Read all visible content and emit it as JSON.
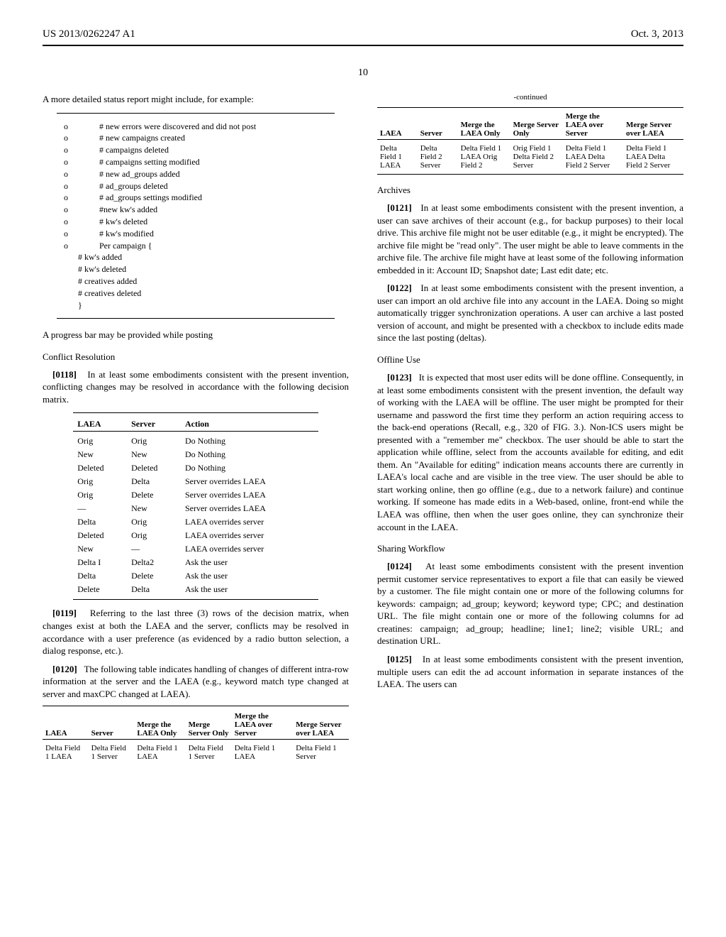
{
  "header": {
    "pub_number": "US 2013/0262247 A1",
    "pub_date": "Oct. 3, 2013",
    "page_number": "10"
  },
  "left_col": {
    "intro": "A more detailed status report might include, for example:",
    "status_items": [
      "# new errors were discovered and did not post",
      "# new campaigns created",
      "# campaigns deleted",
      "# campaigns setting modified",
      "# new ad_groups added",
      "# ad_groups deleted",
      "# ad_groups settings modified",
      "#new kw's added",
      "# kw's deleted",
      "# kw's modified",
      "Per campaign {"
    ],
    "status_sub": [
      "# kw's added",
      "# kw's deleted",
      "# creatives added",
      "# creatives deleted",
      "}"
    ],
    "progress_line": "A progress bar may be provided while posting",
    "conflict_title": "Conflict Resolution",
    "para_0118_num": "[0118]",
    "para_0118": "In at least some embodiments consistent with the present invention, conflicting changes may be resolved in accordance with the following decision matrix.",
    "decision_headers": [
      "LAEA",
      "Server",
      "Action"
    ],
    "decision_rows": [
      [
        "Orig",
        "Orig",
        "Do Nothing"
      ],
      [
        "New",
        "New",
        "Do Nothing"
      ],
      [
        "Deleted",
        "Deleted",
        "Do Nothing"
      ],
      [
        "Orig",
        "Delta",
        "Server overrides LAEA"
      ],
      [
        "Orig",
        "Delete",
        "Server overrides LAEA"
      ],
      [
        "—",
        "New",
        "Server overrides LAEA"
      ],
      [
        "Delta",
        "Orig",
        "LAEA overrides server"
      ],
      [
        "Deleted",
        "Orig",
        "LAEA overrides server"
      ],
      [
        "New",
        "—",
        "LAEA overrides server"
      ],
      [
        "Delta I",
        "Delta2",
        "Ask the user"
      ],
      [
        "Delta",
        "Delete",
        "Ask the user"
      ],
      [
        "Delete",
        "Delta",
        "Ask the user"
      ]
    ],
    "para_0119_num": "[0119]",
    "para_0119": "Referring to the last three (3) rows of the decision matrix, when changes exist at both the LAEA and the server, conflicts may be resolved in accordance with a user preference (as evidenced by a radio button selection, a dialog response, etc.).",
    "para_0120_num": "[0120]",
    "para_0120": "The following table indicates handling of changes of different intra-row information at the server and the LAEA (e.g., keyword match type changed at server and maxCPC changed at LAEA).",
    "merge_headers": [
      "LAEA",
      "Server",
      "Merge the LAEA Only",
      "Merge Server Only",
      "Merge the LAEA over Server",
      "Merge Server over LAEA"
    ],
    "merge_row1": [
      "Delta Field 1 LAEA",
      "Delta Field 1 Server",
      "Delta Field 1 LAEA",
      "Delta Field 1 Server",
      "Delta Field 1 LAEA",
      "Delta Field 1 Server"
    ]
  },
  "right_col": {
    "continued": "-continued",
    "merge_headers": [
      "LAEA",
      "Server",
      "Merge the LAEA Only",
      "Merge Server Only",
      "Merge the LAEA over Server",
      "Merge Server over LAEA"
    ],
    "merge_row2": [
      "Delta Field 1 LAEA",
      "Delta Field 2 Server",
      "Delta Field 1 LAEA Orig Field 2",
      "Orig Field 1 Delta Field 2 Server",
      "Delta Field 1 LAEA Delta Field 2 Server",
      "Delta Field 1 LAEA Delta Field 2 Server"
    ],
    "archives_title": "Archives",
    "para_0121_num": "[0121]",
    "para_0121": "In at least some embodiments consistent with the present invention, a user can save archives of their account (e.g., for backup purposes) to their local drive. This archive file might not be user editable (e.g., it might be encrypted). The archive file might be \"read only\". The user might be able to leave comments in the archive file. The archive file might have at least some of the following information embedded in it: Account ID; Snapshot date; Last edit date; etc.",
    "para_0122_num": "[0122]",
    "para_0122": "In at least some embodiments consistent with the present invention, a user can import an old archive file into any account in the LAEA. Doing so might automatically trigger synchronization operations. A user can archive a last posted version of account, and might be presented with a checkbox to include edits made since the last posting (deltas).",
    "offline_title": "Offline Use",
    "para_0123_num": "[0123]",
    "para_0123": "It is expected that most user edits will be done offline. Consequently, in at least some embodiments consistent with the present invention, the default way of working with the LAEA will be offline. The user might be prompted for their username and password the first time they perform an action requiring access to the back-end operations (Recall, e.g., 320 of FIG. 3.). Non-ICS users might be presented with a \"remember me\" checkbox. The user should be able to start the application while offline, select from the accounts available for editing, and edit them. An \"Available for editing\" indication means accounts there are currently in LAEA's local cache and are visible in the tree view. The user should be able to start working online, then go offline (e.g., due to a network failure) and continue working. If someone has made edits in a Web-based, online, front-end while the LAEA was offline, then when the user goes online, they can synchronize their account in the LAEA.",
    "sharing_title": "Sharing Workflow",
    "para_0124_num": "[0124]",
    "para_0124": "At least some embodiments consistent with the present invention permit customer service representatives to export a file that can easily be viewed by a customer. The file might contain one or more of the following columns for keywords: campaign; ad_group; keyword; keyword type; CPC; and destination URL. The file might contain one or more of the following columns for ad creatines: campaign; ad_group; headline; line1; line2; visible URL; and destination URL.",
    "para_0125_num": "[0125]",
    "para_0125": "In at least some embodiments consistent with the present invention, multiple users can edit the ad account information in separate instances of the LAEA. The users can"
  }
}
